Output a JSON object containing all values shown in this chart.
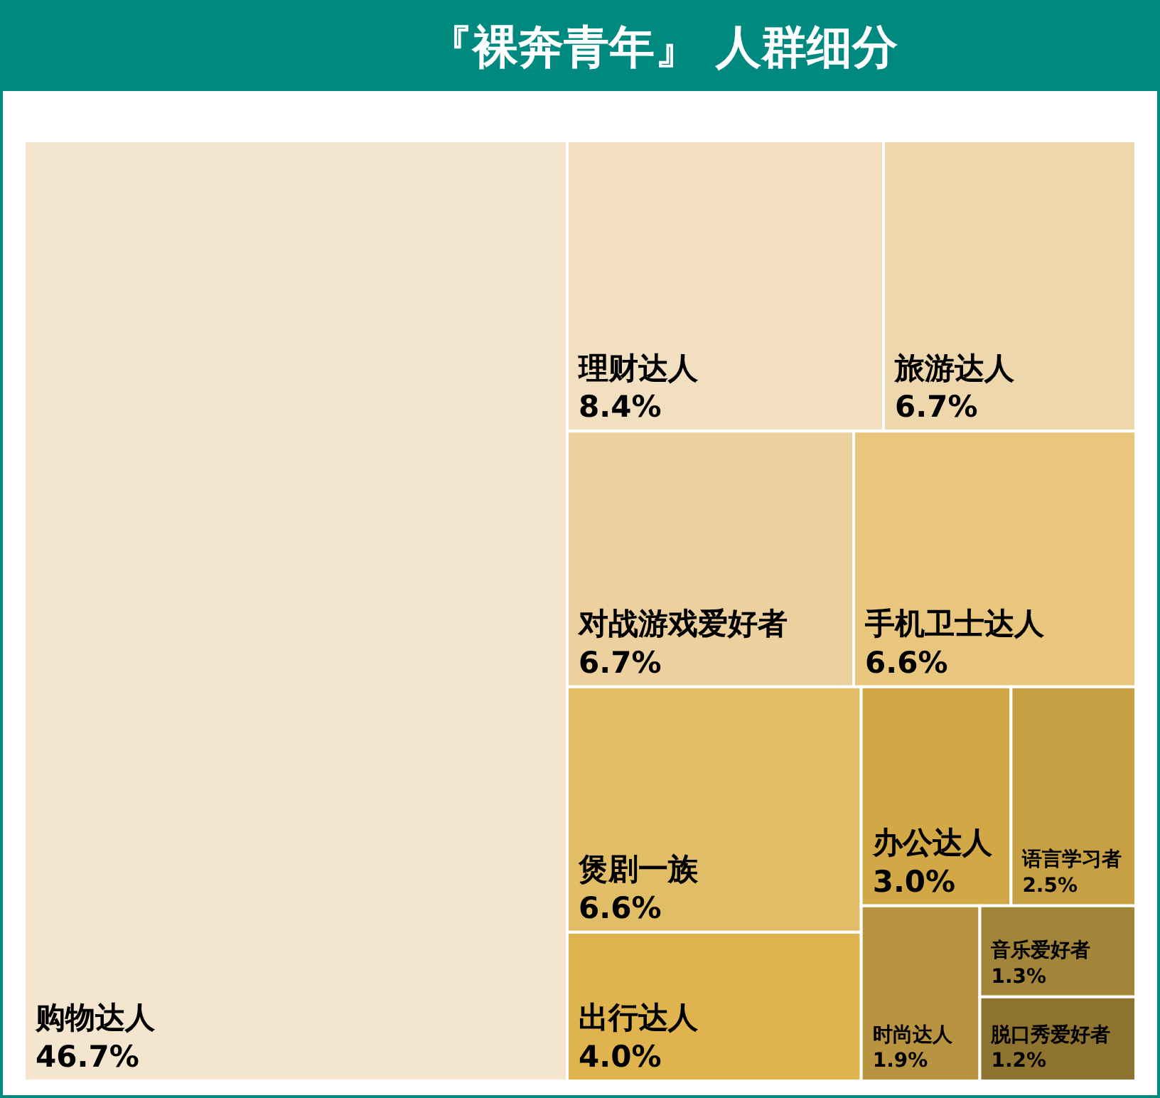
{
  "chart_data": {
    "type": "other",
    "title": "『裸奔青年』 人群细分",
    "categories": [
      "购物达人",
      "理财达人",
      "旅游达人",
      "对战游戏爱好者",
      "手机卫士达人",
      "煲剧一族",
      "出行达人",
      "办公达人",
      "语言学习者",
      "时尚达人",
      "音乐爱好者",
      "脱口秀爱好者"
    ],
    "values": [
      46.7,
      8.4,
      6.7,
      6.7,
      6.6,
      6.6,
      4.0,
      3.0,
      2.5,
      1.9,
      1.3,
      1.2
    ],
    "value_labels": [
      "46.7%",
      "8.4%",
      "6.7%",
      "6.7%",
      "6.6%",
      "6.6%",
      "4.0%",
      "3.0%",
      "2.5%",
      "1.9%",
      "1.3%",
      "1.2%"
    ],
    "colors": [
      "#f4e5cf",
      "#f1dfbf",
      "#eed7ac",
      "#ecd09d",
      "#e8c67e",
      "#e2bd67",
      "#dfb44f",
      "#d2a847",
      "#c6a043",
      "#b89340",
      "#a3853a",
      "#8f7430"
    ]
  }
}
